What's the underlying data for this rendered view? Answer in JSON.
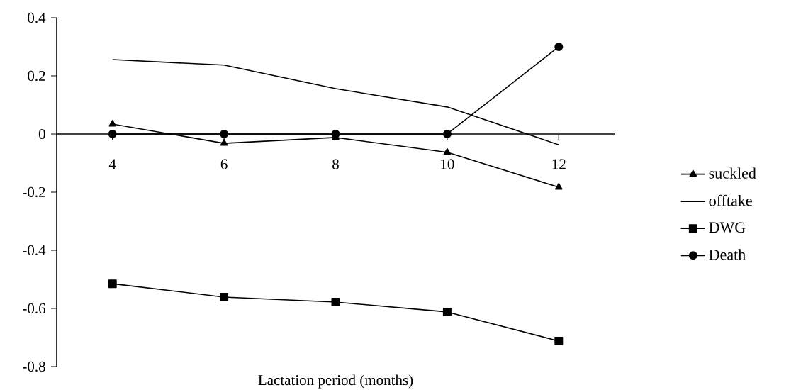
{
  "chart_data": {
    "type": "line",
    "xlabel": "Lactation period (months)",
    "categories": [
      "4",
      "6",
      "8",
      "10",
      "12"
    ],
    "series": [
      {
        "name": "suckled",
        "color": "#000000",
        "marker": "triangle",
        "values": [
          0.034,
          -0.032,
          -0.012,
          -0.063,
          -0.183
        ]
      },
      {
        "name": "offtake",
        "color": "#000000",
        "marker": "none",
        "values": [
          0.256,
          0.237,
          0.156,
          0.093,
          -0.037
        ]
      },
      {
        "name": "DWG",
        "color": "#000000",
        "marker": "square",
        "values": [
          -0.515,
          -0.561,
          -0.578,
          -0.612,
          -0.712
        ]
      },
      {
        "name": "Death",
        "color": "#000000",
        "marker": "circle",
        "values": [
          0,
          0,
          0,
          0,
          0.3
        ]
      }
    ],
    "ylim": [
      -0.8,
      0.4
    ],
    "yticks": [
      -0.8,
      -0.6,
      -0.4,
      -0.2,
      0,
      0.2,
      0.4
    ],
    "legend": "right"
  }
}
